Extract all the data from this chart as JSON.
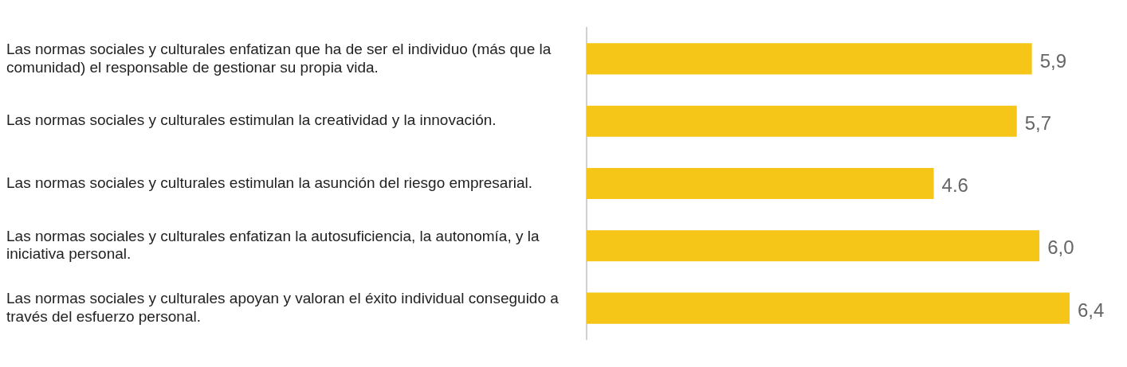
{
  "chart_data": {
    "type": "bar",
    "orientation": "horizontal",
    "categories": [
      "Las normas sociales y culturales enfatizan que ha de ser el individuo (más que la comunidad) el responsable de gestionar su propia vida.",
      "Las normas sociales y culturales estimulan la creatividad y la innovación.",
      "Las normas sociales y culturales estimulan la asunción del riesgo empresarial.",
      "Las normas sociales y culturales enfatizan la autosuficiencia, la autonomía, y la iniciativa personal.",
      "Las normas sociales y culturales apoyan y valoran el éxito individual conseguido a través del esfuerzo personal."
    ],
    "values": [
      5.9,
      5.7,
      4.6,
      6.0,
      6.4
    ],
    "value_labels": [
      "5,9",
      "5,7",
      "4.6",
      "6,0",
      "6,4"
    ],
    "color": "#f5c518",
    "grid": false,
    "legend": false,
    "tick_labels": "y"
  }
}
